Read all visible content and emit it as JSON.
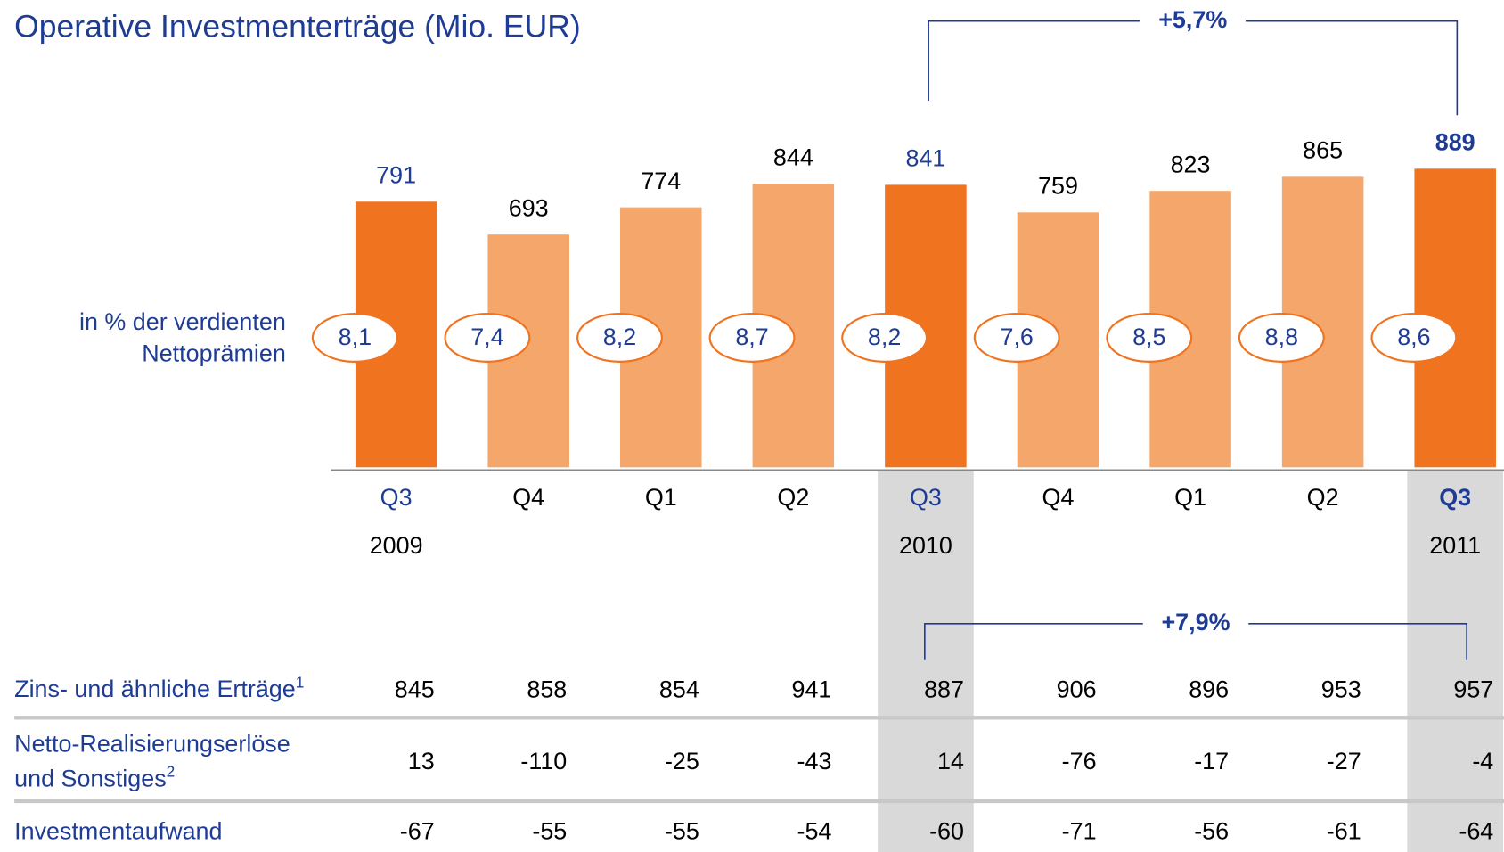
{
  "chart_data": {
    "type": "bar",
    "title": "Operative Investmenterträge (Mio. EUR)",
    "ratio_title": [
      "in % der verdienten",
      "Nettoprämien"
    ],
    "categories": [
      "Q3",
      "Q4",
      "Q1",
      "Q2",
      "Q3",
      "Q4",
      "Q1",
      "Q2",
      "Q3"
    ],
    "years": [
      "2009",
      null,
      null,
      null,
      "2010",
      null,
      null,
      null,
      "2011"
    ],
    "values": [
      791,
      693,
      774,
      844,
      841,
      759,
      823,
      865,
      889
    ],
    "colors": [
      "#f07320",
      "#f5a66a",
      "#f5a66a",
      "#f5a66a",
      "#f07320",
      "#f5a66a",
      "#f5a66a",
      "#f5a66a",
      "#f07320"
    ],
    "ratios": [
      "8,1",
      "7,4",
      "8,2",
      "8,7",
      "8,2",
      "7,6",
      "8,5",
      "8,8",
      "8,6"
    ],
    "ylim": [
      0,
      1000
    ],
    "growth_top": "+5,7%",
    "growth_bottom": "+7,9%"
  },
  "table": {
    "rows": [
      {
        "label": [
          "Zins- und ähnliche Erträge"
        ],
        "footnote": "1",
        "values": [
          845,
          858,
          854,
          941,
          887,
          906,
          896,
          953,
          957
        ]
      },
      {
        "label": [
          "Netto-Realisierungserlöse",
          "und Sonstiges"
        ],
        "footnote": "2",
        "values": [
          13,
          -110,
          -25,
          -43,
          14,
          -76,
          -17,
          -27,
          -4
        ]
      },
      {
        "label": [
          "Investmentaufwand"
        ],
        "values": [
          -67,
          -55,
          -55,
          -54,
          -60,
          -71,
          -56,
          -61,
          -64
        ]
      }
    ]
  }
}
